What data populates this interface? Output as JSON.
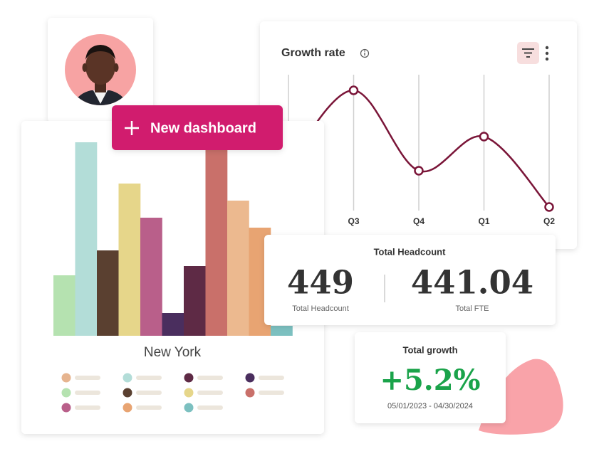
{
  "button": {
    "label": "New dashboard"
  },
  "growth_rate": {
    "title": "Growth rate",
    "categories": [
      null,
      "Q3",
      "Q4",
      "Q1",
      "Q2"
    ],
    "values": [
      70,
      173,
      60,
      108,
      9
    ],
    "color": "#7a1538"
  },
  "bar_chart": {
    "caption": "New York",
    "values": [
      85,
      272,
      120,
      214,
      166,
      32,
      98,
      275,
      190,
      152,
      14
    ],
    "colors": [
      "#b5e2b0",
      "#b3ddd8",
      "#5a4030",
      "#e6d68a",
      "#b95f8a",
      "#4a2e5e",
      "#5e2a45",
      "#c9706a",
      "#ecb98f",
      "#e8a472",
      "#7cc0c0"
    ]
  },
  "headcount": {
    "title": "Total Headcount",
    "metrics": [
      {
        "value": 449,
        "label": "Total Headcount"
      },
      {
        "value": 441.04,
        "label": "Total FTE"
      }
    ]
  },
  "total_growth": {
    "title": "Total growth",
    "value": "+5.2%",
    "period": "05/01/2023 - 04/30/2024"
  }
}
